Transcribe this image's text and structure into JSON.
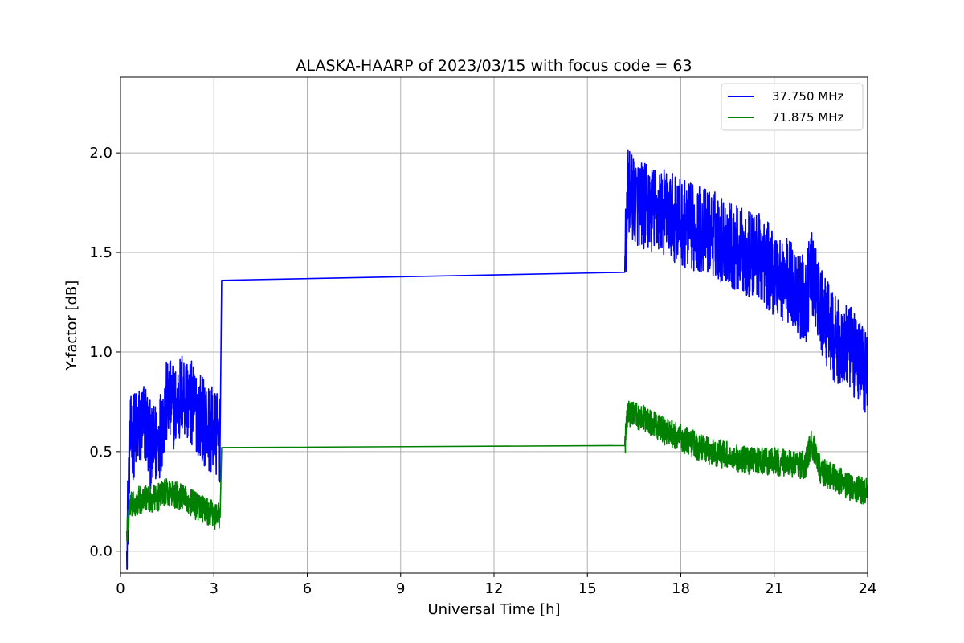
{
  "chart_data": {
    "type": "line",
    "title": "ALASKA-HAARP of 2023/03/15 with focus code = 63",
    "xlabel": "Universal Time [h]",
    "ylabel": "Y-factor [dB]",
    "xlim": [
      0,
      24
    ],
    "ylim": [
      -0.11,
      2.38
    ],
    "xticks": [
      0,
      3,
      6,
      9,
      12,
      15,
      18,
      21,
      24
    ],
    "xtick_labels": [
      "0",
      "3",
      "6",
      "9",
      "12",
      "15",
      "18",
      "21",
      "24"
    ],
    "yticks": [
      0.0,
      0.5,
      1.0,
      1.5,
      2.0
    ],
    "ytick_labels": [
      "0.0",
      "0.5",
      "1.0",
      "1.5",
      "2.0"
    ],
    "grid": true,
    "legend_position": "top-right",
    "series": [
      {
        "name": "37.750 MHz",
        "color": "#0000ff",
        "x": [
          0.2,
          0.3,
          0.5,
          0.8,
          1.0,
          1.2,
          1.5,
          1.8,
          2.0,
          2.2,
          2.5,
          2.8,
          3.0,
          3.2,
          3.25,
          16.2,
          16.3,
          16.6,
          17.0,
          17.5,
          18.0,
          18.5,
          19.0,
          19.5,
          20.0,
          20.5,
          21.0,
          21.5,
          22.0,
          22.2,
          22.5,
          23.0,
          23.5,
          24.0
        ],
        "y": [
          0.0,
          0.55,
          0.6,
          0.65,
          0.5,
          0.55,
          0.75,
          0.72,
          0.8,
          0.75,
          0.7,
          0.62,
          0.6,
          0.55,
          1.36,
          1.4,
          1.8,
          1.75,
          1.72,
          1.7,
          1.65,
          1.62,
          1.6,
          1.55,
          1.5,
          1.48,
          1.4,
          1.35,
          1.25,
          1.4,
          1.2,
          1.05,
          1.0,
          0.9
        ]
      },
      {
        "name": "71.875 MHz",
        "color": "#008000",
        "x": [
          0.2,
          0.3,
          0.5,
          0.8,
          1.0,
          1.2,
          1.5,
          1.8,
          2.0,
          2.2,
          2.5,
          2.8,
          3.0,
          3.2,
          3.25,
          16.2,
          16.3,
          16.6,
          17.0,
          17.5,
          18.0,
          18.5,
          19.0,
          19.5,
          20.0,
          20.5,
          21.0,
          21.5,
          22.0,
          22.2,
          22.5,
          23.0,
          23.5,
          24.0
        ],
        "y": [
          0.1,
          0.22,
          0.25,
          0.27,
          0.26,
          0.27,
          0.3,
          0.28,
          0.27,
          0.25,
          0.22,
          0.2,
          0.18,
          0.17,
          0.52,
          0.53,
          0.7,
          0.68,
          0.65,
          0.6,
          0.57,
          0.53,
          0.5,
          0.48,
          0.46,
          0.45,
          0.45,
          0.44,
          0.43,
          0.55,
          0.4,
          0.36,
          0.32,
          0.3
        ]
      }
    ]
  }
}
